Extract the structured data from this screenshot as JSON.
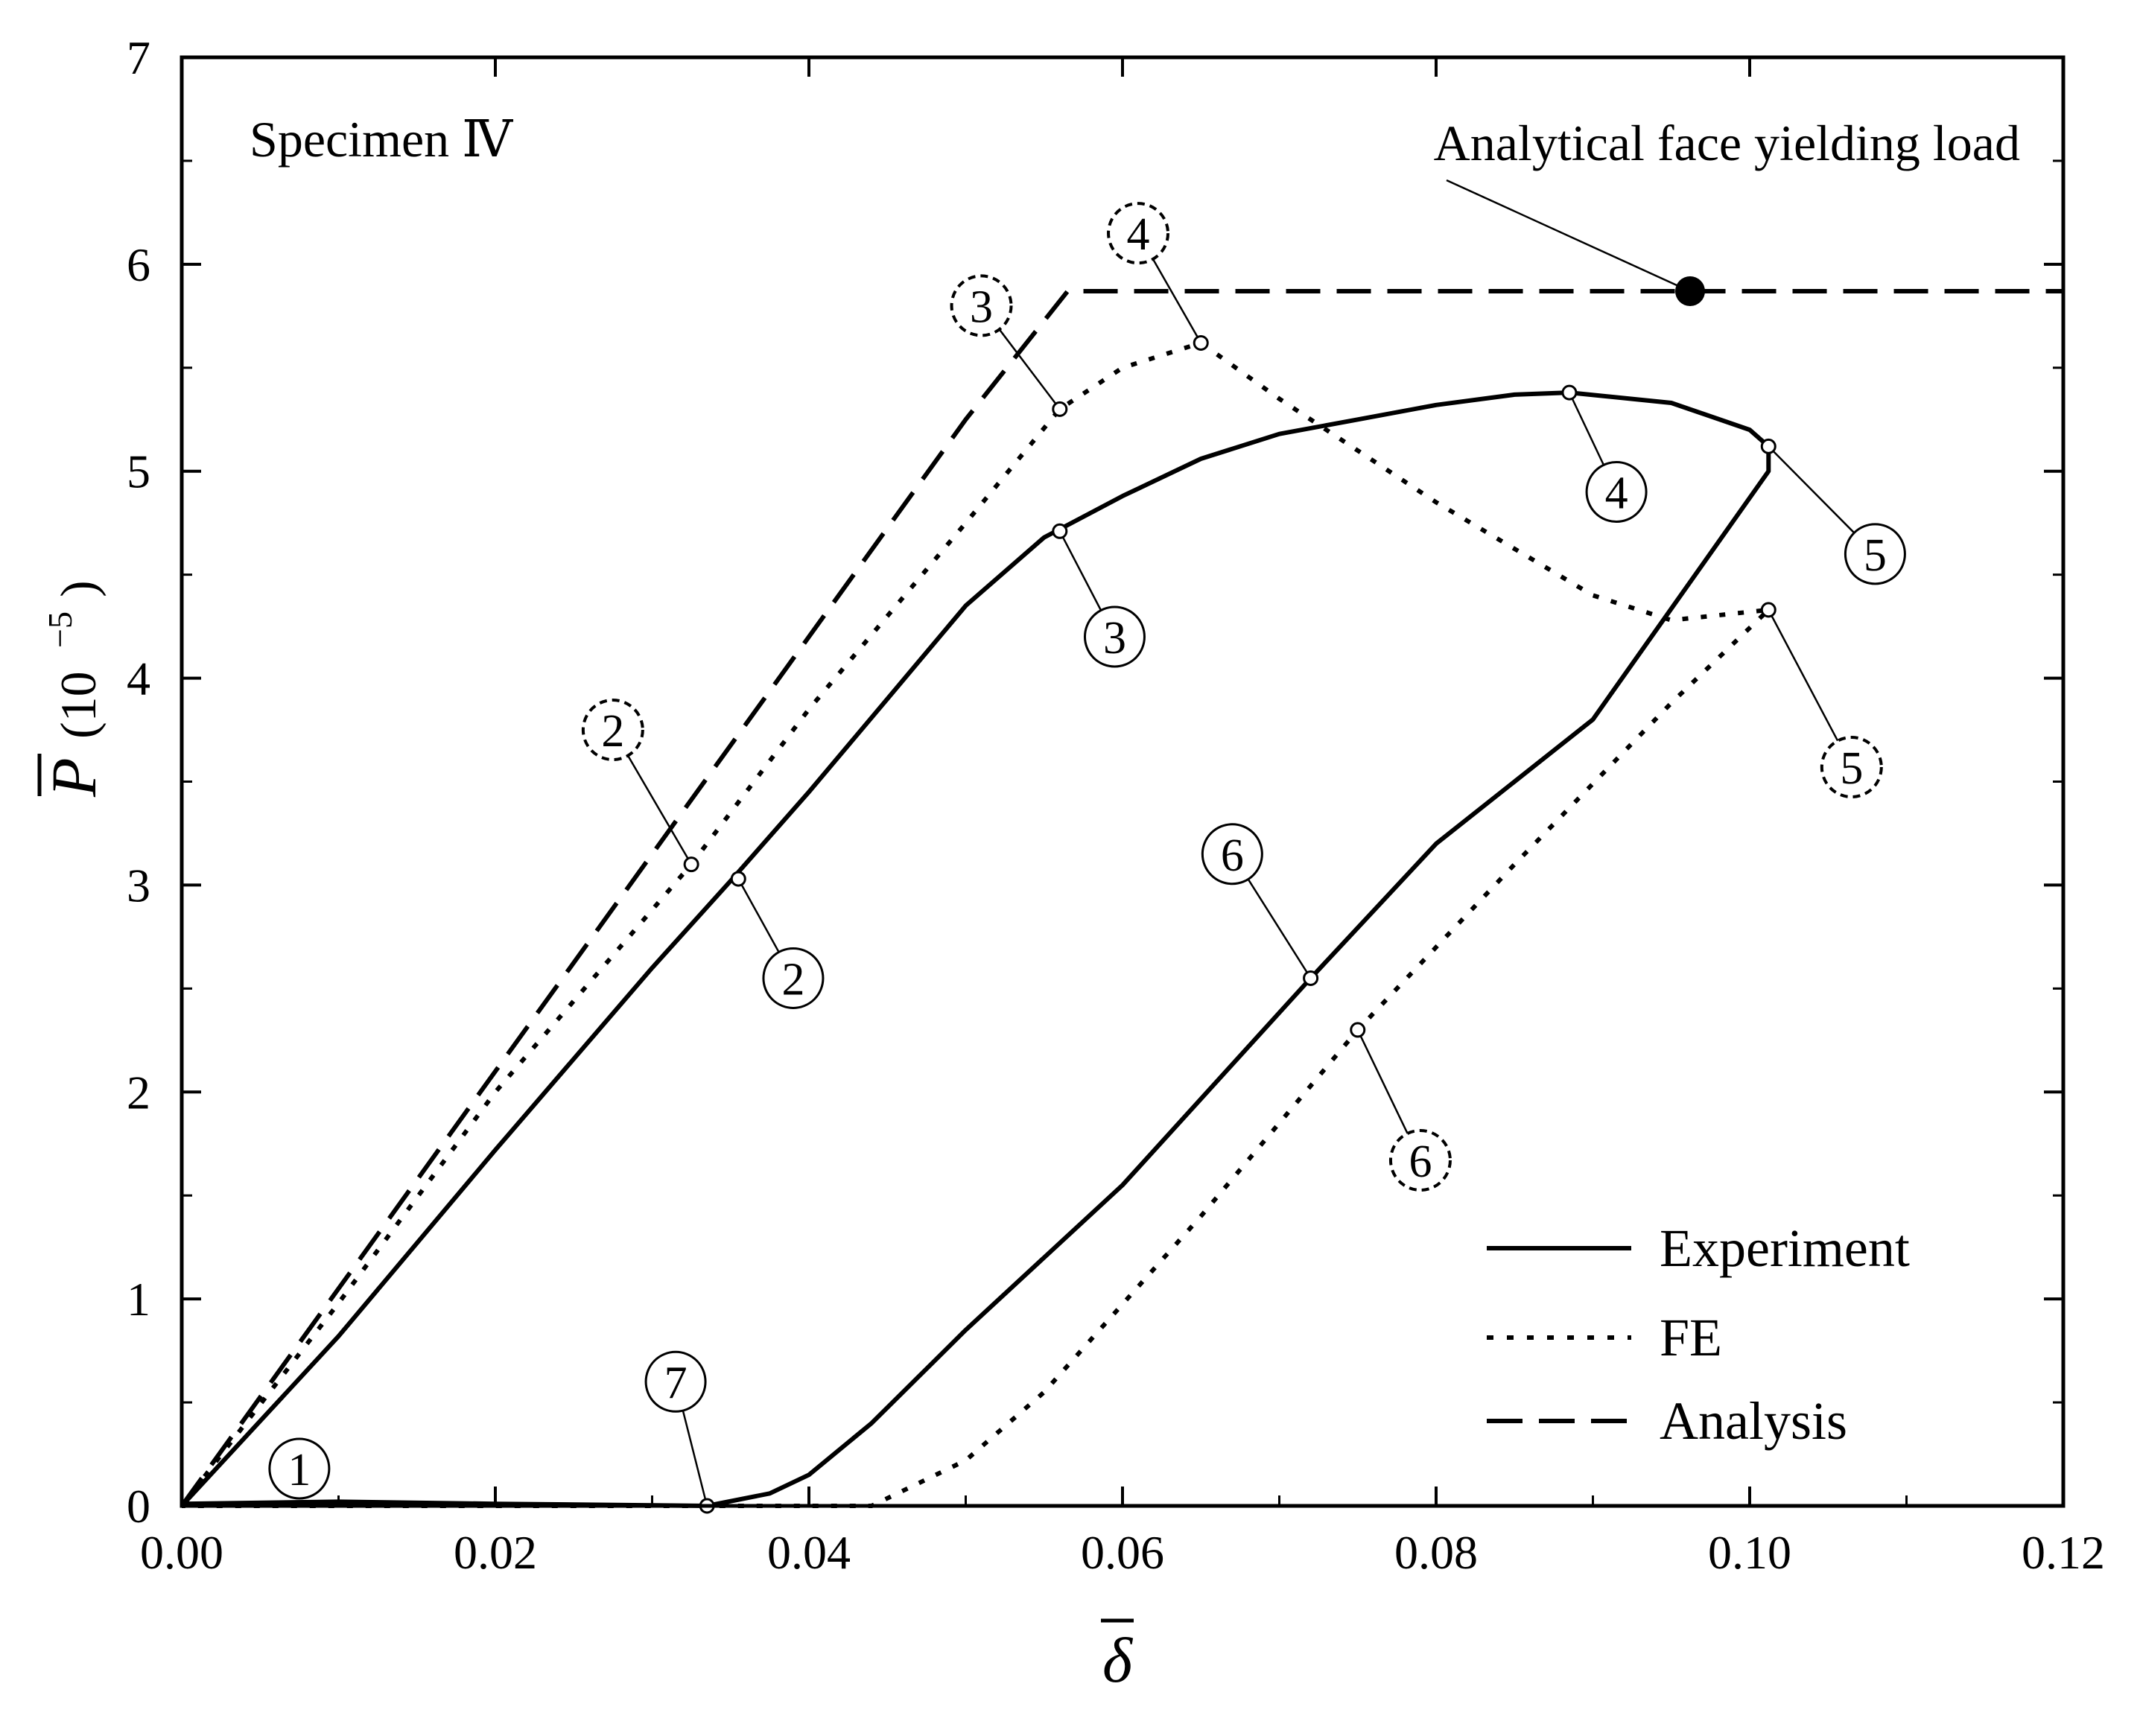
{
  "chart_data": {
    "type": "line",
    "title": "",
    "xlabel": "δ",
    "ylabel": "P",
    "ylabel_units": "(10",
    "ylabel_exponent": "−5",
    "ylabel_units_close": ")",
    "xlim": [
      0,
      0.12
    ],
    "ylim": [
      0,
      7
    ],
    "x_ticks": [
      "0.00",
      "0.02",
      "0.04",
      "0.06",
      "0.08",
      "0.10",
      "0.12"
    ],
    "y_ticks": [
      "0",
      "1",
      "2",
      "3",
      "4",
      "5",
      "6",
      "7"
    ],
    "grid": false,
    "legend_position": "bottom-right",
    "annotations": {
      "specimen": "Specimen Ⅳ",
      "yield_label": "Analytical face yielding load"
    },
    "yield_point": {
      "x": 0.0962,
      "y": 5.87
    },
    "series": [
      {
        "name": "Experiment",
        "style": "solid",
        "points": [
          [
            0.0,
            0.0
          ],
          [
            0.01,
            0.82
          ],
          [
            0.02,
            1.72
          ],
          [
            0.03,
            2.6
          ],
          [
            0.035,
            3.02
          ],
          [
            0.04,
            3.45
          ],
          [
            0.045,
            3.9
          ],
          [
            0.05,
            4.35
          ],
          [
            0.055,
            4.68
          ],
          [
            0.06,
            4.88
          ],
          [
            0.065,
            5.06
          ],
          [
            0.07,
            5.18
          ],
          [
            0.075,
            5.25
          ],
          [
            0.08,
            5.32
          ],
          [
            0.085,
            5.37
          ],
          [
            0.0885,
            5.38
          ],
          [
            0.095,
            5.33
          ],
          [
            0.1,
            5.2
          ],
          [
            0.1012,
            5.12
          ],
          [
            0.1012,
            5.0
          ],
          [
            0.09,
            3.8
          ],
          [
            0.08,
            3.2
          ],
          [
            0.072,
            2.55
          ],
          [
            0.06,
            1.55
          ],
          [
            0.05,
            0.85
          ],
          [
            0.044,
            0.4
          ],
          [
            0.04,
            0.15
          ],
          [
            0.0375,
            0.06
          ],
          [
            0.0335,
            0.0
          ],
          [
            0.02,
            0.01
          ],
          [
            0.01,
            0.02
          ],
          [
            0.0,
            0.01
          ]
        ]
      },
      {
        "name": "FE",
        "style": "dotted",
        "points": [
          [
            0.0,
            0.0
          ],
          [
            0.01,
            0.98
          ],
          [
            0.02,
            2.0
          ],
          [
            0.0325,
            3.1
          ],
          [
            0.04,
            3.85
          ],
          [
            0.05,
            4.75
          ],
          [
            0.056,
            5.3
          ],
          [
            0.06,
            5.5
          ],
          [
            0.065,
            5.62
          ],
          [
            0.07,
            5.35
          ],
          [
            0.08,
            4.85
          ],
          [
            0.09,
            4.4
          ],
          [
            0.095,
            4.28
          ],
          [
            0.1012,
            4.33
          ],
          [
            0.095,
            3.88
          ],
          [
            0.085,
            3.1
          ],
          [
            0.075,
            2.3
          ],
          [
            0.065,
            1.4
          ],
          [
            0.055,
            0.55
          ],
          [
            0.05,
            0.22
          ],
          [
            0.044,
            0.0
          ],
          [
            0.03,
            0.0
          ],
          [
            0.015,
            0.0
          ],
          [
            0.0,
            0.0
          ]
        ]
      },
      {
        "name": "Analysis",
        "style": "dashed",
        "points": [
          [
            0.0,
            0.0
          ],
          [
            0.01,
            1.05
          ],
          [
            0.02,
            2.1
          ],
          [
            0.03,
            3.15
          ],
          [
            0.04,
            4.2
          ],
          [
            0.05,
            5.25
          ],
          [
            0.0565,
            5.87
          ],
          [
            0.12,
            5.87
          ]
        ]
      }
    ],
    "marked_points": [
      {
        "label": "1",
        "series": "Experiment",
        "style": "solid",
        "x": 0.0,
        "y": 0.0,
        "label_x": 0.0075,
        "label_y": 0.18,
        "show_marker": false
      },
      {
        "label": "2",
        "series": "Experiment",
        "style": "solid",
        "x": 0.0355,
        "y": 3.03,
        "label_x": 0.039,
        "label_y": 2.55
      },
      {
        "label": "3",
        "series": "Experiment",
        "style": "solid",
        "x": 0.056,
        "y": 4.71,
        "label_x": 0.0595,
        "label_y": 4.2
      },
      {
        "label": "4",
        "series": "Experiment",
        "style": "solid",
        "x": 0.0885,
        "y": 5.38,
        "label_x": 0.0915,
        "label_y": 4.9
      },
      {
        "label": "5",
        "series": "Experiment",
        "style": "solid",
        "x": 0.1012,
        "y": 5.12,
        "label_x": 0.108,
        "label_y": 4.6
      },
      {
        "label": "6",
        "series": "Experiment",
        "style": "solid",
        "x": 0.072,
        "y": 2.55,
        "label_x": 0.067,
        "label_y": 3.15
      },
      {
        "label": "7",
        "series": "Experiment",
        "style": "solid",
        "x": 0.0335,
        "y": 0.0,
        "label_x": 0.0315,
        "label_y": 0.6
      },
      {
        "label": "2",
        "series": "FE",
        "style": "dashed",
        "x": 0.0325,
        "y": 3.1,
        "label_x": 0.0275,
        "label_y": 3.75
      },
      {
        "label": "3",
        "series": "FE",
        "style": "dashed",
        "x": 0.056,
        "y": 5.3,
        "label_x": 0.051,
        "label_y": 5.8
      },
      {
        "label": "4",
        "series": "FE",
        "style": "dashed",
        "x": 0.065,
        "y": 5.62,
        "label_x": 0.061,
        "label_y": 6.15
      },
      {
        "label": "5",
        "series": "FE",
        "style": "dashed",
        "x": 0.1012,
        "y": 4.33,
        "label_x": 0.1065,
        "label_y": 3.57
      },
      {
        "label": "6",
        "series": "FE",
        "style": "dashed",
        "x": 0.075,
        "y": 2.3,
        "label_x": 0.079,
        "label_y": 1.67
      }
    ]
  }
}
